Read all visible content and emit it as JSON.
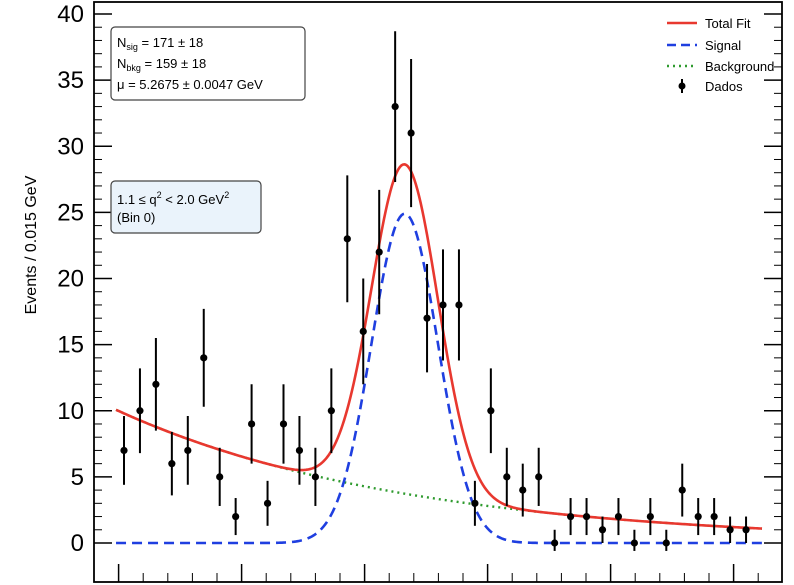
{
  "chart_data": {
    "type": "scatter",
    "ylabel": "Events / 0.015 GeV",
    "ylim": [
      0,
      40
    ],
    "yticks": [
      0,
      5,
      10,
      15,
      20,
      25,
      30,
      35,
      40
    ],
    "legend": {
      "placement": "top-right",
      "entries": [
        {
          "label": "Total Fit",
          "color": "#e8382f",
          "style": "solid"
        },
        {
          "label": "Signal",
          "color": "#1f3fe0",
          "style": "dashed"
        },
        {
          "label": "Background",
          "color": "#2e9a2e",
          "style": "dotted"
        },
        {
          "label": "Dados",
          "color": "#000000",
          "style": "marker"
        }
      ]
    },
    "stats_box": {
      "nsig": {
        "main": "N",
        "sub": "sig",
        "rest": " = 171 ± 18"
      },
      "nbkg": {
        "main": "N",
        "sub": "bkg",
        "rest": " = 159 ± 18"
      },
      "mu": "μ = 5.2675 ± 0.0047 GeV"
    },
    "bin_box": {
      "line1_pre": "1.1 ≤ q",
      "line1_sup": "2",
      "line1_mid": " < 2.0 GeV",
      "line1_sup2": "2",
      "line2": "(Bin 0)"
    },
    "fit": {
      "bins": 40,
      "peak_bin": 17.6,
      "signal_amplitude": 24.9,
      "signal_sigma": 2.08,
      "background_at_start": 9.8,
      "background_decay": 0.0549
    },
    "data_points": [
      {
        "bin": 0,
        "y": 7,
        "err": 2.6
      },
      {
        "bin": 1,
        "y": 10,
        "err": 3.2
      },
      {
        "bin": 2,
        "y": 12,
        "err": 3.5
      },
      {
        "bin": 3,
        "y": 6,
        "err": 2.4
      },
      {
        "bin": 4,
        "y": 7,
        "err": 2.6
      },
      {
        "bin": 5,
        "y": 14,
        "err": 3.7
      },
      {
        "bin": 6,
        "y": 5,
        "err": 2.2
      },
      {
        "bin": 7,
        "y": 2,
        "err": 1.4
      },
      {
        "bin": 8,
        "y": 9,
        "err": 3.0
      },
      {
        "bin": 9,
        "y": 3,
        "err": 1.7
      },
      {
        "bin": 10,
        "y": 9,
        "err": 3.0
      },
      {
        "bin": 11,
        "y": 7,
        "err": 2.6
      },
      {
        "bin": 12,
        "y": 5,
        "err": 2.2
      },
      {
        "bin": 13,
        "y": 10,
        "err": 3.2
      },
      {
        "bin": 14,
        "y": 23,
        "err": 4.8
      },
      {
        "bin": 15,
        "y": 16,
        "err": 4.0
      },
      {
        "bin": 16,
        "y": 22,
        "err": 4.7
      },
      {
        "bin": 17,
        "y": 33,
        "err": 5.7
      },
      {
        "bin": 18,
        "y": 31,
        "err": 5.6
      },
      {
        "bin": 19,
        "y": 17,
        "err": 4.1
      },
      {
        "bin": 20,
        "y": 18,
        "err": 4.2
      },
      {
        "bin": 21,
        "y": 18,
        "err": 4.2
      },
      {
        "bin": 22,
        "y": 3,
        "err": 1.7
      },
      {
        "bin": 23,
        "y": 10,
        "err": 3.2
      },
      {
        "bin": 24,
        "y": 5,
        "err": 2.2
      },
      {
        "bin": 25,
        "y": 4,
        "err": 2.0
      },
      {
        "bin": 26,
        "y": 5,
        "err": 2.2
      },
      {
        "bin": 27,
        "y": 0,
        "err": 1.0
      },
      {
        "bin": 28,
        "y": 2,
        "err": 1.4
      },
      {
        "bin": 29,
        "y": 2,
        "err": 1.4
      },
      {
        "bin": 30,
        "y": 1,
        "err": 1.0
      },
      {
        "bin": 31,
        "y": 2,
        "err": 1.4
      },
      {
        "bin": 32,
        "y": 0,
        "err": 1.0
      },
      {
        "bin": 33,
        "y": 2,
        "err": 1.4
      },
      {
        "bin": 34,
        "y": 0,
        "err": 1.0
      },
      {
        "bin": 35,
        "y": 4,
        "err": 2.0
      },
      {
        "bin": 36,
        "y": 2,
        "err": 1.4
      },
      {
        "bin": 37,
        "y": 2,
        "err": 1.4
      },
      {
        "bin": 38,
        "y": 1,
        "err": 1.0
      },
      {
        "bin": 39,
        "y": 1,
        "err": 1.0
      }
    ]
  }
}
